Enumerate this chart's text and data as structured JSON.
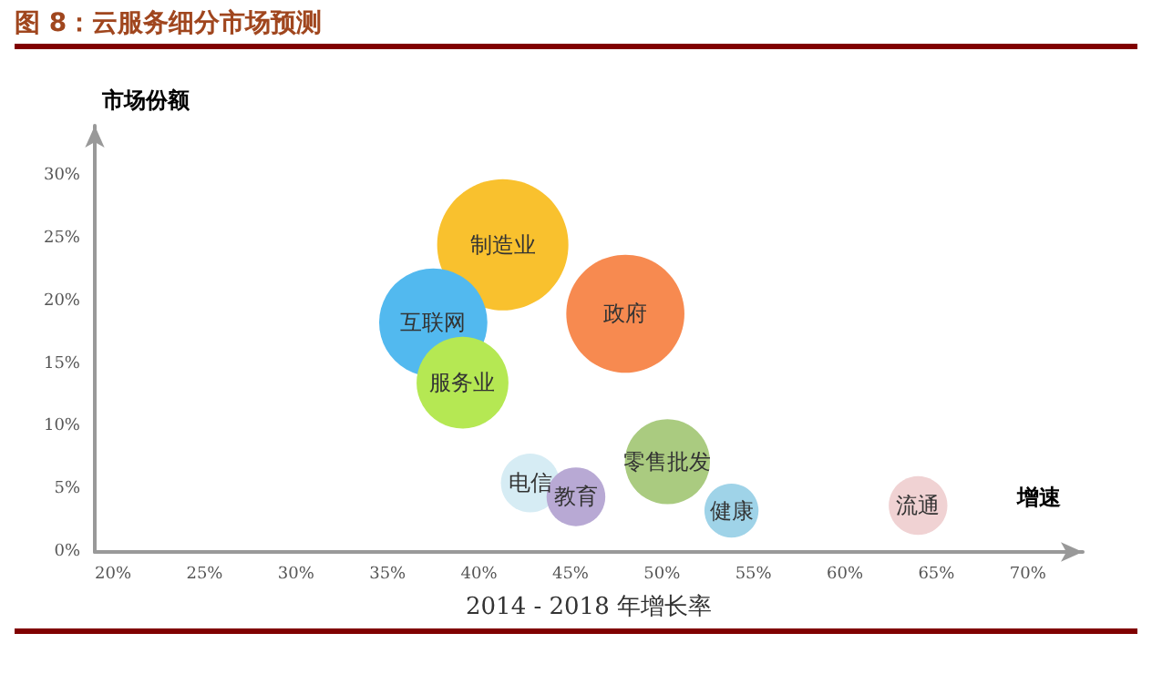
{
  "chart_data": {
    "type": "bubble",
    "title": "图 8：云服务细分市场预测",
    "xlabel": "2014 - 2018 年增长率",
    "ylabel": "市场份额",
    "annotations": [
      "增速"
    ],
    "xlim": [
      19,
      73
    ],
    "ylim": [
      0,
      34
    ],
    "xticks": [
      {
        "value": 20,
        "label": "20%"
      },
      {
        "value": 25,
        "label": "25%"
      },
      {
        "value": 30,
        "label": "30%"
      },
      {
        "value": 35,
        "label": "35%"
      },
      {
        "value": 40,
        "label": "40%"
      },
      {
        "value": 45,
        "label": "45%"
      },
      {
        "value": 50,
        "label": "50%"
      },
      {
        "value": 55,
        "label": "55%"
      },
      {
        "value": 60,
        "label": "60%"
      },
      {
        "value": 65,
        "label": "65%"
      },
      {
        "value": 70,
        "label": "70%"
      }
    ],
    "yticks": [
      {
        "value": 0,
        "label": "0%"
      },
      {
        "value": 5,
        "label": "5%"
      },
      {
        "value": 10,
        "label": "10%"
      },
      {
        "value": 15,
        "label": "15%"
      },
      {
        "value": 20,
        "label": "20%"
      },
      {
        "value": 25,
        "label": "25%"
      },
      {
        "value": 30,
        "label": "30%"
      }
    ],
    "grid": false,
    "legend": false,
    "series": [
      {
        "name": "制造业",
        "color": "#f9c12e",
        "x": [
          41.3
        ],
        "values": [
          24.5
        ],
        "sizes": [
          1
        ]
      },
      {
        "name": "政府",
        "color": "#f78a50",
        "x": [
          48
        ],
        "values": [
          19
        ],
        "sizes": [
          0.81
        ]
      },
      {
        "name": "互联网",
        "color": "#52b9ef",
        "x": [
          37.5
        ],
        "values": [
          18.3
        ],
        "sizes": [
          0.68
        ]
      },
      {
        "name": "服务业",
        "color": "#b5e853",
        "x": [
          39.1
        ],
        "values": [
          13.5
        ],
        "sizes": [
          0.49
        ]
      },
      {
        "name": "电信",
        "color": "#d6ecf4",
        "x": [
          42.8
        ],
        "values": [
          5.5
        ],
        "sizes": [
          0.2
        ]
      },
      {
        "name": "教育",
        "color": "#b8a9d4",
        "x": [
          45.3
        ],
        "values": [
          4.4
        ],
        "sizes": [
          0.2
        ]
      },
      {
        "name": "零售批发",
        "color": "#aacb80",
        "x": [
          50.3
        ],
        "values": [
          7.2
        ],
        "sizes": [
          0.42
        ]
      },
      {
        "name": "健康",
        "color": "#9fd3e8",
        "x": [
          53.8
        ],
        "values": [
          3.3
        ],
        "sizes": [
          0.17
        ]
      },
      {
        "name": "流通",
        "color": "#f0d2d3",
        "x": [
          64
        ],
        "values": [
          3.7
        ],
        "sizes": [
          0.2
        ]
      }
    ]
  }
}
